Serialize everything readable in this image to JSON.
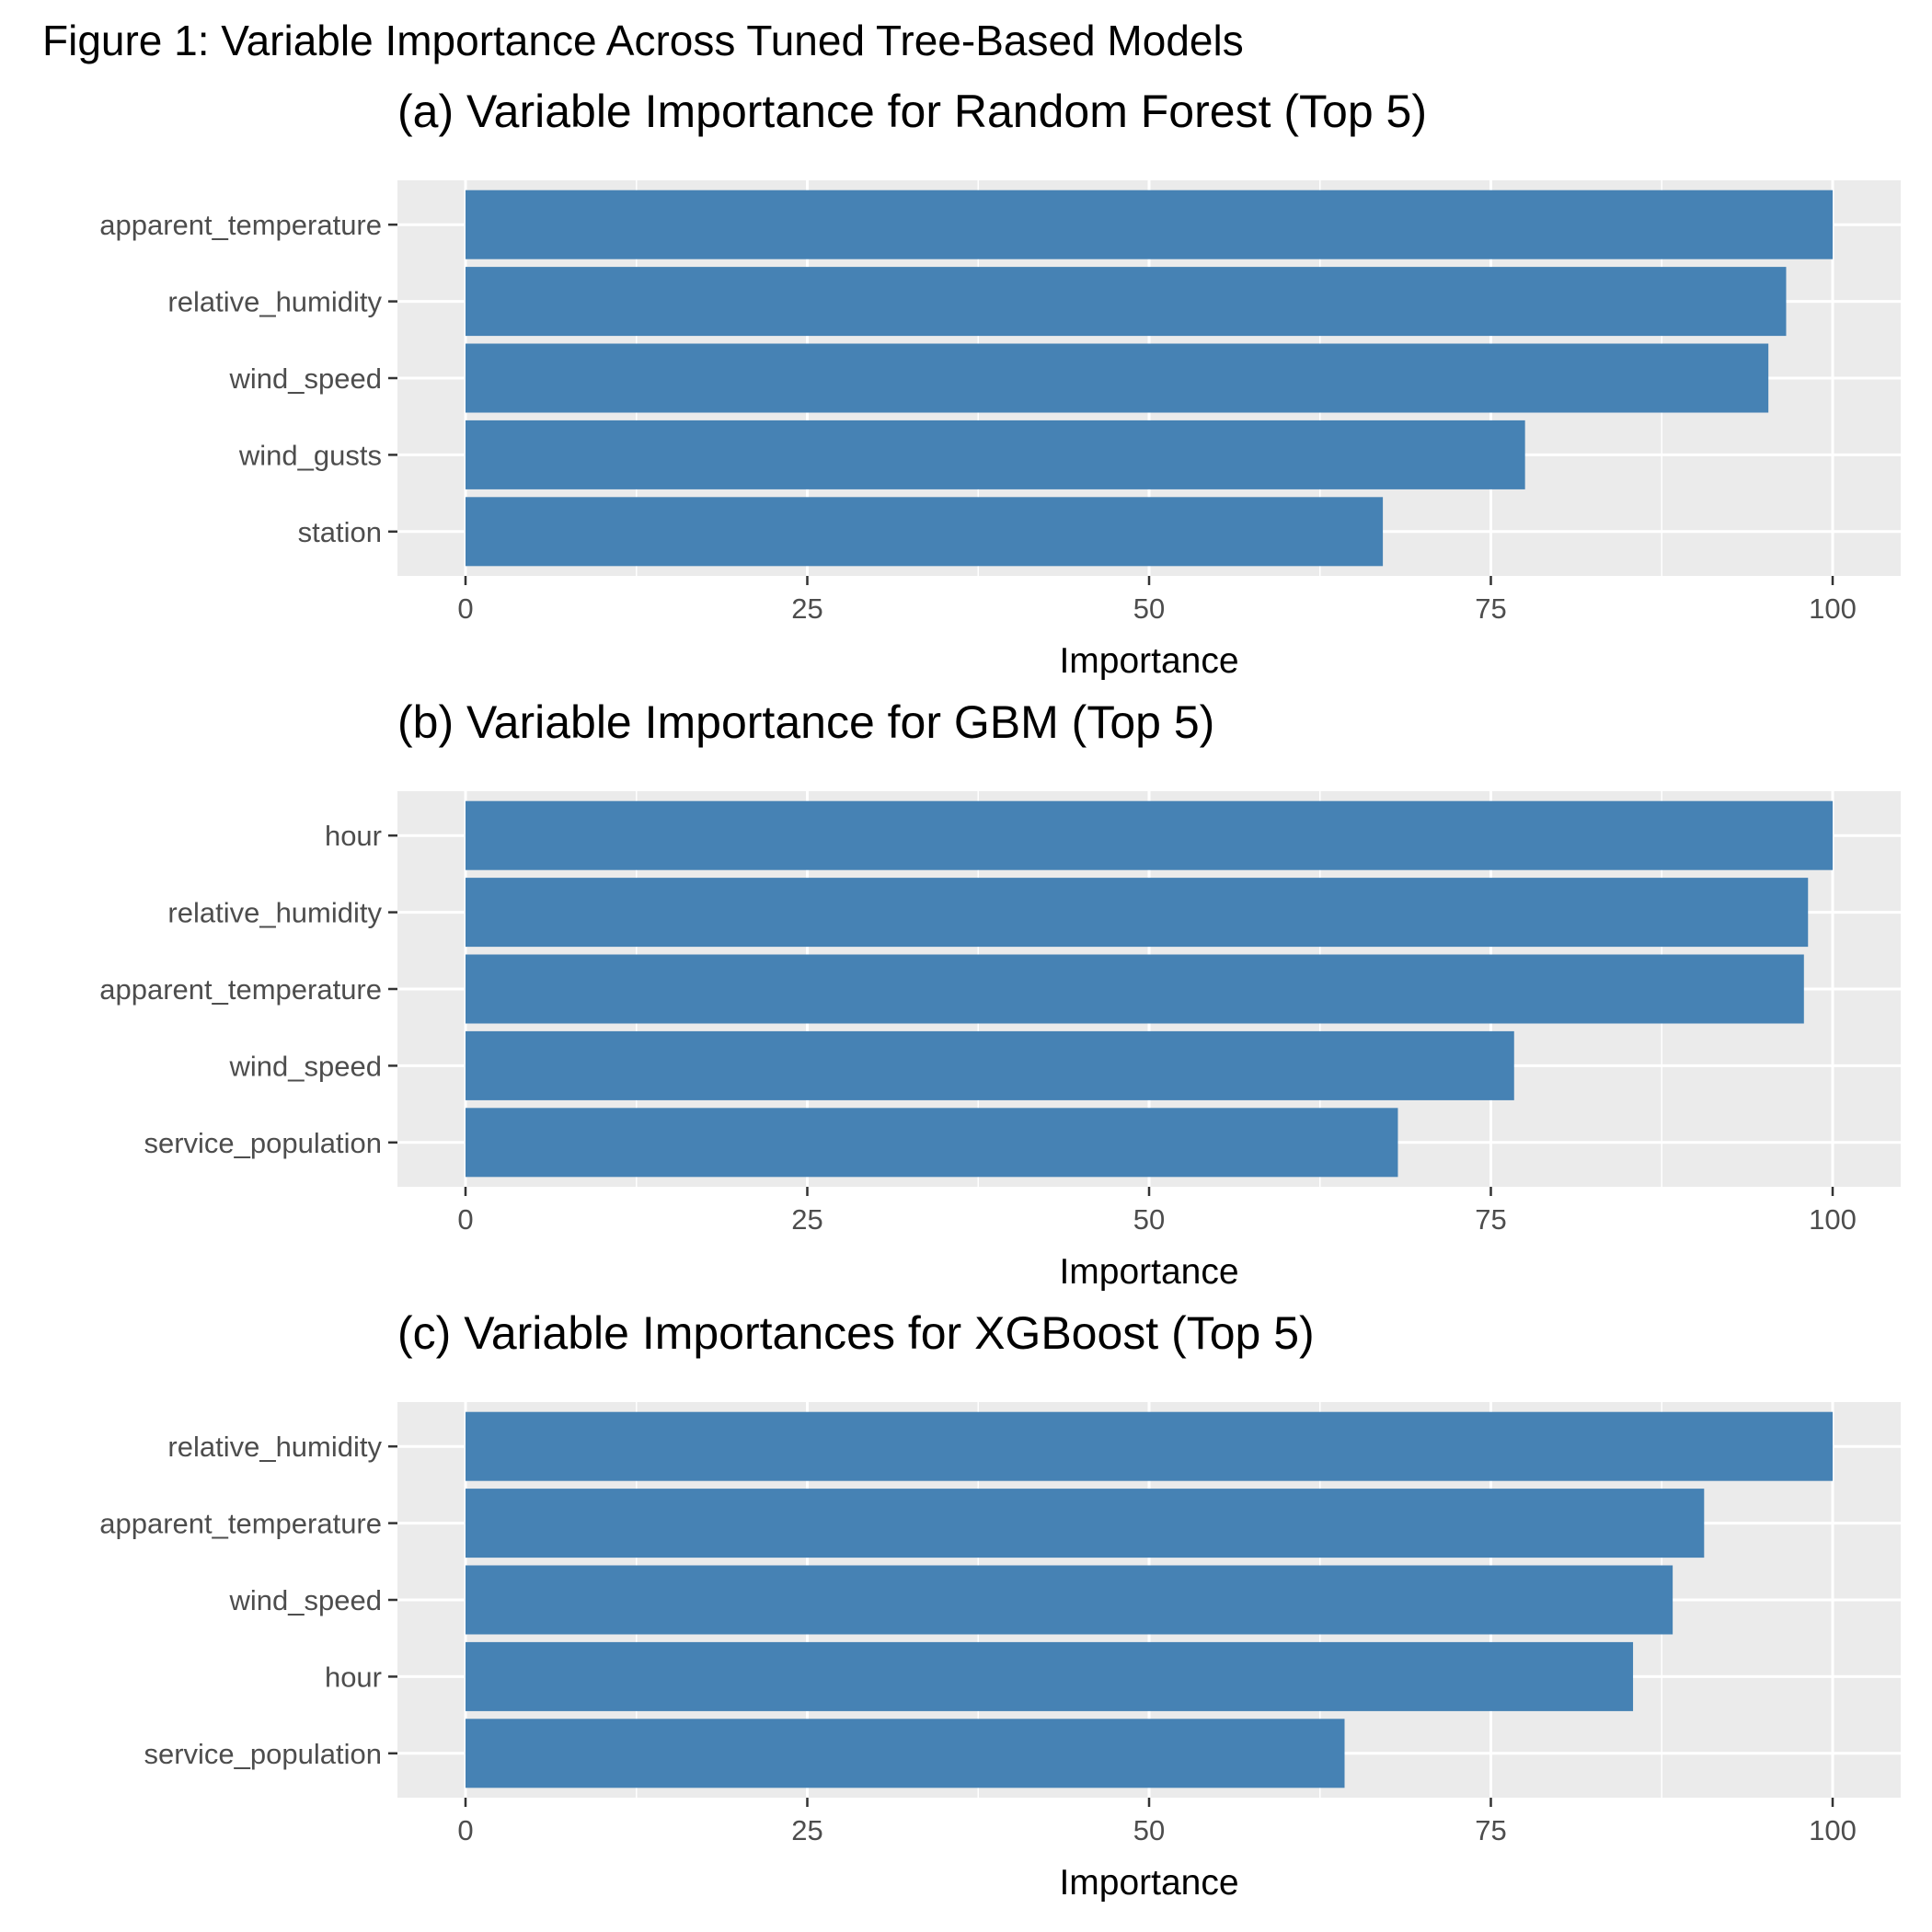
{
  "figure_title": "Figure 1: Variable Importance Across Tuned Tree-Based Models",
  "colors": {
    "bar": "#4682b4",
    "panel_background": "#ebebeb",
    "grid": "#ffffff",
    "tick_text": "#4d4d4d",
    "tick_mark": "#333333"
  },
  "chart_data": [
    {
      "type": "bar",
      "orientation": "horizontal",
      "title": "(a) Variable Importance for Random Forest (Top 5)",
      "xlabel": "Importance",
      "ylabel": "",
      "xlim": [
        0,
        100
      ],
      "xticks": [
        0,
        25,
        50,
        75,
        100
      ],
      "grid": true,
      "categories": [
        "apparent_temperature",
        "relative_humidity",
        "wind_speed",
        "wind_gusts",
        "station"
      ],
      "values": [
        100,
        96.6,
        95.3,
        77.5,
        67.1
      ]
    },
    {
      "type": "bar",
      "orientation": "horizontal",
      "title": "(b) Variable Importance for GBM (Top 5)",
      "xlabel": "Importance",
      "ylabel": "",
      "xlim": [
        0,
        100
      ],
      "xticks": [
        0,
        25,
        50,
        75,
        100
      ],
      "grid": true,
      "categories": [
        "hour",
        "relative_humidity",
        "apparent_temperature",
        "wind_speed",
        "service_population"
      ],
      "values": [
        100,
        98.2,
        97.9,
        76.7,
        68.2
      ]
    },
    {
      "type": "bar",
      "orientation": "horizontal",
      "title": "(c) Variable Importances  for XGBoost (Top 5)",
      "xlabel": "Importance",
      "ylabel": "",
      "xlim": [
        0,
        100
      ],
      "xticks": [
        0,
        25,
        50,
        75,
        100
      ],
      "grid": true,
      "categories": [
        "relative_humidity",
        "apparent_temperature",
        "wind_speed",
        "hour",
        "service_population"
      ],
      "values": [
        100,
        90.6,
        88.3,
        85.4,
        64.3
      ]
    }
  ]
}
